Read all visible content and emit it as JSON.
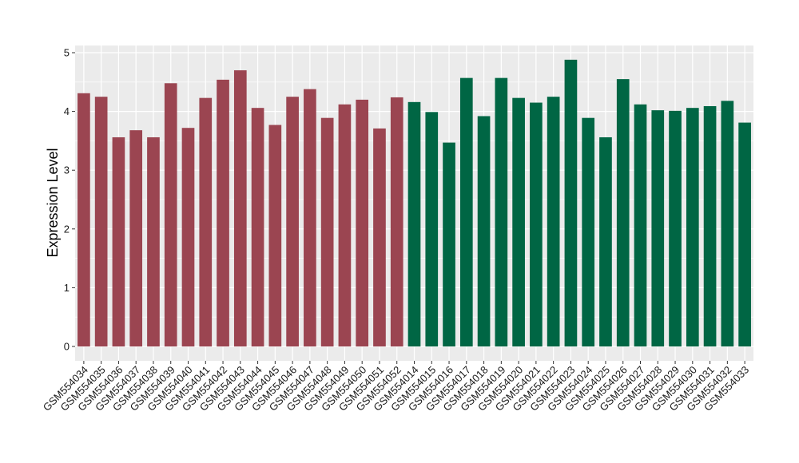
{
  "chart_data": {
    "type": "bar",
    "title": "",
    "xlabel": "",
    "ylabel": "Expression Level",
    "ylim": [
      0,
      5
    ],
    "yticks": [
      0,
      1,
      2,
      3,
      4,
      5
    ],
    "grid": true,
    "legend": "none",
    "categories": [
      "GSM554034",
      "GSM554035",
      "GSM554036",
      "GSM554037",
      "GSM554038",
      "GSM554039",
      "GSM554040",
      "GSM554041",
      "GSM554042",
      "GSM554043",
      "GSM554044",
      "GSM554045",
      "GSM554046",
      "GSM554047",
      "GSM554048",
      "GSM554049",
      "GSM554050",
      "GSM554051",
      "GSM554052",
      "GSM554014",
      "GSM554015",
      "GSM554016",
      "GSM554017",
      "GSM554018",
      "GSM554019",
      "GSM554020",
      "GSM554021",
      "GSM554022",
      "GSM554023",
      "GSM554024",
      "GSM554025",
      "GSM554026",
      "GSM554027",
      "GSM554028",
      "GSM554029",
      "GSM554030",
      "GSM554031",
      "GSM554032",
      "GSM554033"
    ],
    "values": [
      4.31,
      4.25,
      3.56,
      3.68,
      3.56,
      4.48,
      3.72,
      4.23,
      4.54,
      4.7,
      4.06,
      3.77,
      4.25,
      4.38,
      3.89,
      4.12,
      4.2,
      3.71,
      4.24,
      4.16,
      3.99,
      3.47,
      4.57,
      3.92,
      4.57,
      4.23,
      4.15,
      4.25,
      4.88,
      3.89,
      3.56,
      4.55,
      4.12,
      4.02,
      4.01,
      4.06,
      4.09,
      4.18,
      3.81
    ],
    "bar_colors": [
      "#9b4551",
      "#9b4551",
      "#9b4551",
      "#9b4551",
      "#9b4551",
      "#9b4551",
      "#9b4551",
      "#9b4551",
      "#9b4551",
      "#9b4551",
      "#9b4551",
      "#9b4551",
      "#9b4551",
      "#9b4551",
      "#9b4551",
      "#9b4551",
      "#9b4551",
      "#9b4551",
      "#9b4551",
      "#006644",
      "#006644",
      "#006644",
      "#006644",
      "#006644",
      "#006644",
      "#006644",
      "#006644",
      "#006644",
      "#006644",
      "#006644",
      "#006644",
      "#006644",
      "#006644",
      "#006644",
      "#006644",
      "#006644",
      "#006644",
      "#006644",
      "#006644"
    ],
    "panel_background": "#ebebeb",
    "grid_color": "#ffffff"
  }
}
